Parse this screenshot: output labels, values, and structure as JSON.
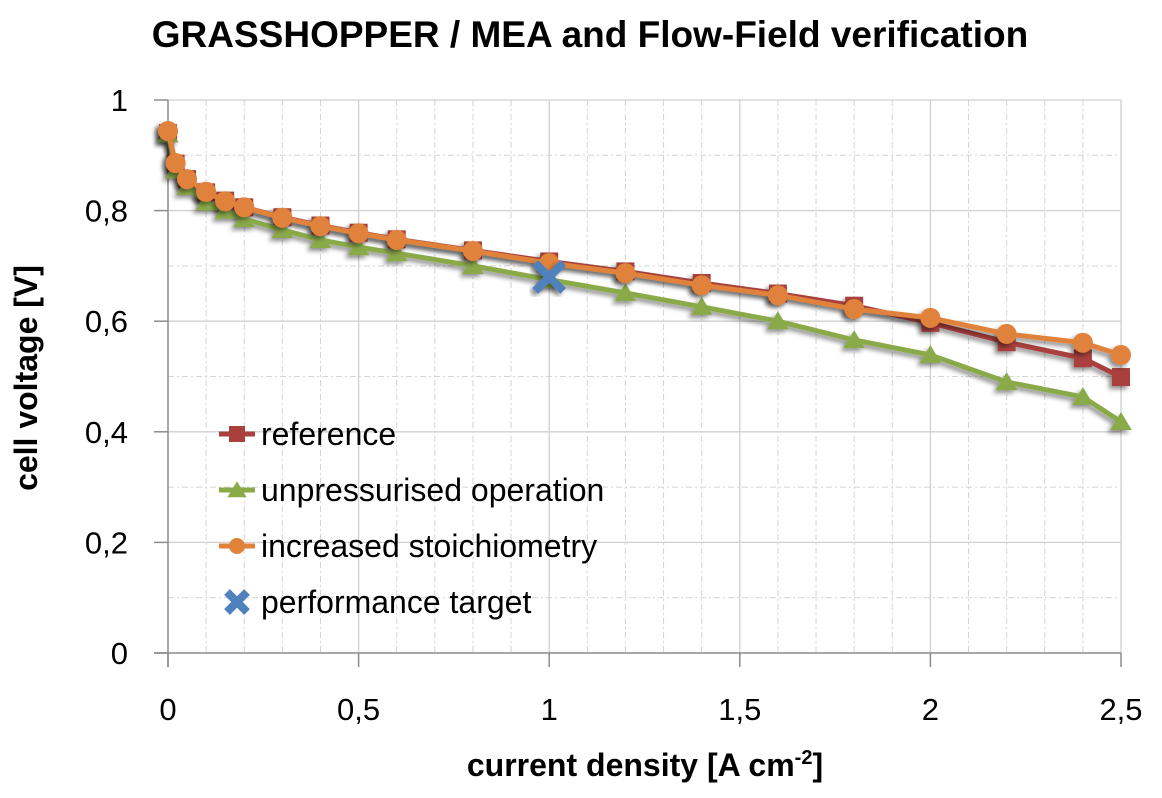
{
  "chart_data": {
    "type": "line",
    "title": "GRASSHOPPER / MEA and Flow-Field verification",
    "xlabel": "current density [A cm",
    "xlabel_superscript": "-2",
    "xlabel_suffix": "]",
    "ylabel": "cell voltage [V]",
    "xlim": [
      0,
      2.5
    ],
    "ylim": [
      0,
      1
    ],
    "x_ticks": [
      0,
      0.5,
      1,
      1.5,
      2,
      2.5
    ],
    "x_tick_labels": [
      "0",
      "0,5",
      "1",
      "1,5",
      "2",
      "2,5"
    ],
    "y_ticks": [
      0,
      0.2,
      0.4,
      0.6,
      0.8,
      1
    ],
    "y_tick_labels": [
      "0",
      "0,2",
      "0,4",
      "0,6",
      "0,8",
      "1"
    ],
    "grid": true,
    "minor_grid": true,
    "legend_position": "bottom-left (inside plot)",
    "series": [
      {
        "name": "reference",
        "marker": "square",
        "color": "#A9403C",
        "x": [
          0,
          0.02,
          0.05,
          0.1,
          0.15,
          0.2,
          0.3,
          0.4,
          0.5,
          0.6,
          0.8,
          1.0,
          1.2,
          1.4,
          1.6,
          1.8,
          2.0,
          2.2,
          2.4,
          2.5
        ],
        "y": [
          0.94,
          0.885,
          0.857,
          0.833,
          0.818,
          0.806,
          0.788,
          0.773,
          0.76,
          0.748,
          0.728,
          0.708,
          0.69,
          0.669,
          0.65,
          0.628,
          0.597,
          0.562,
          0.533,
          0.499
        ]
      },
      {
        "name": "unpressurised operation",
        "marker": "triangle",
        "color": "#8AAA48",
        "x": [
          0,
          0.02,
          0.05,
          0.1,
          0.15,
          0.2,
          0.3,
          0.4,
          0.5,
          0.6,
          0.8,
          1.0,
          1.2,
          1.4,
          1.6,
          1.8,
          2.0,
          2.2,
          2.4,
          2.5
        ],
        "y": [
          0.938,
          0.873,
          0.843,
          0.815,
          0.8,
          0.785,
          0.765,
          0.747,
          0.734,
          0.723,
          0.7,
          0.675,
          0.651,
          0.626,
          0.6,
          0.566,
          0.539,
          0.49,
          0.463,
          0.418
        ]
      },
      {
        "name": "increased stoichiometry",
        "marker": "circle",
        "color": "#E0823A",
        "x": [
          0,
          0.02,
          0.05,
          0.1,
          0.15,
          0.2,
          0.3,
          0.4,
          0.5,
          0.6,
          0.8,
          1.0,
          1.2,
          1.4,
          1.6,
          1.8,
          2.0,
          2.2,
          2.4,
          2.5
        ],
        "y": [
          0.944,
          0.886,
          0.857,
          0.834,
          0.817,
          0.806,
          0.787,
          0.772,
          0.759,
          0.747,
          0.727,
          0.705,
          0.687,
          0.665,
          0.647,
          0.622,
          0.606,
          0.577,
          0.561,
          0.539
        ]
      },
      {
        "name": "performance target",
        "marker": "x",
        "color": "#4F81BD",
        "line": false,
        "x": [
          1.0
        ],
        "y": [
          0.68
        ]
      }
    ]
  }
}
